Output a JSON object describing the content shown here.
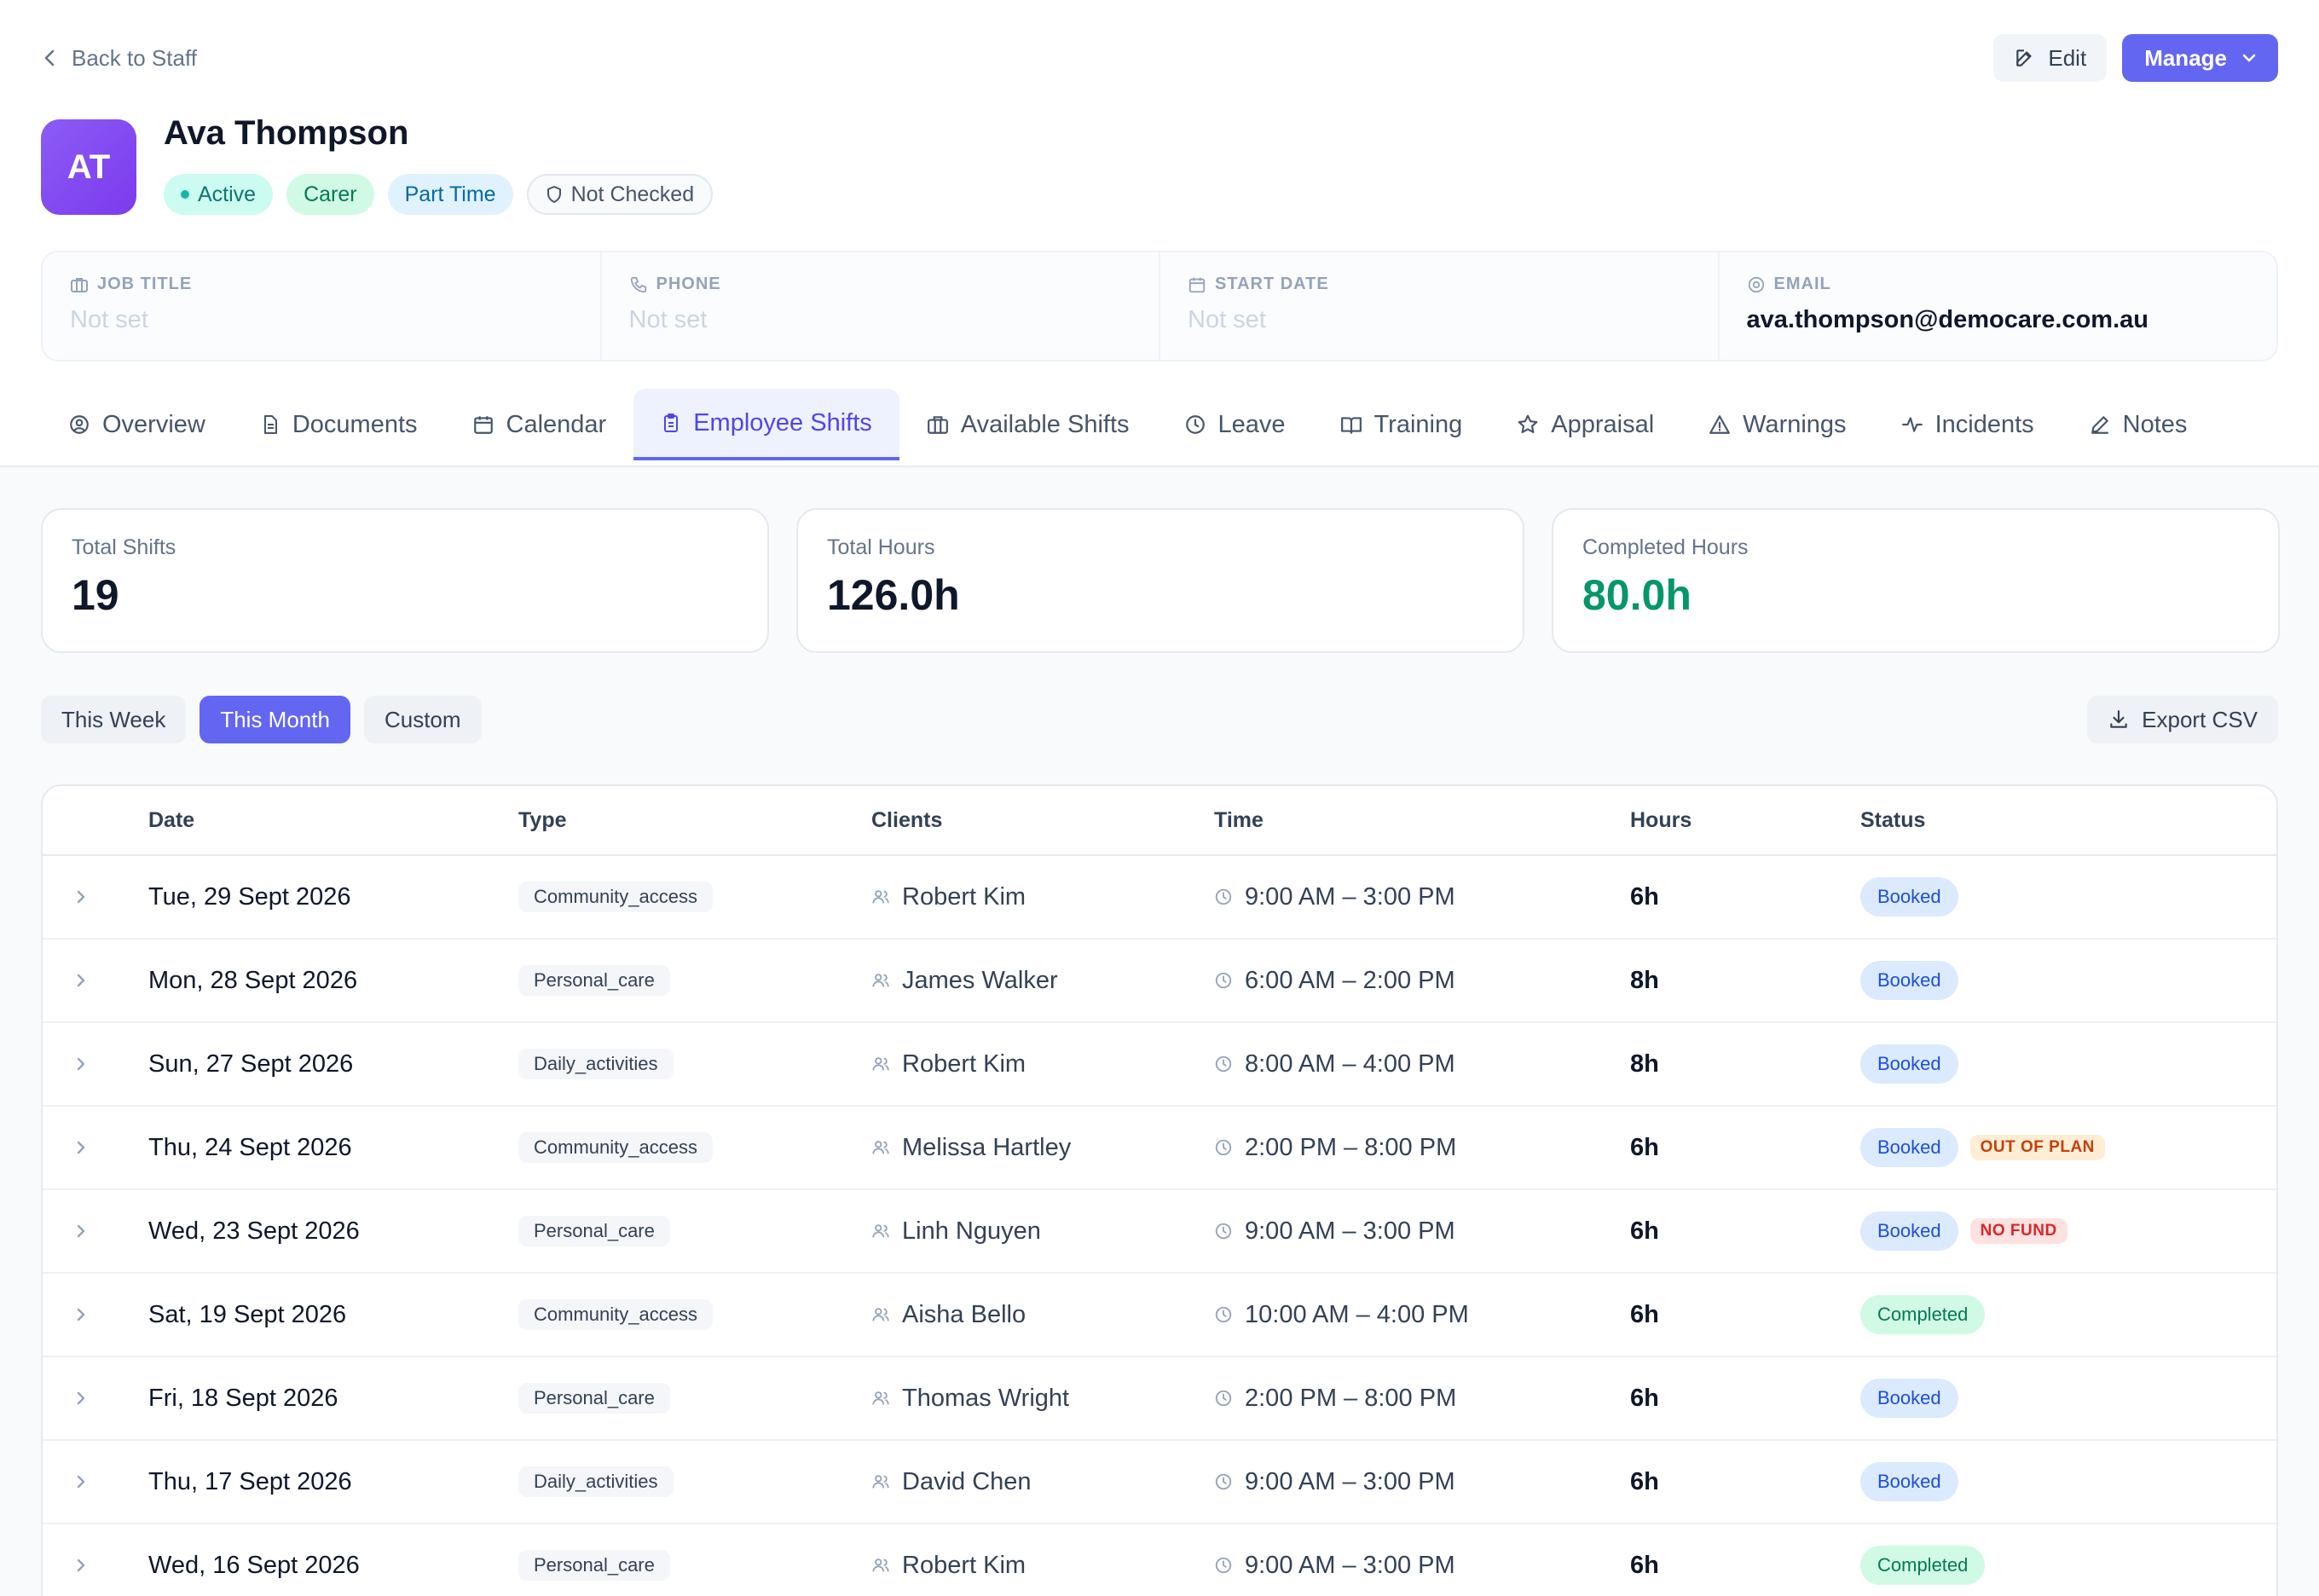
{
  "header": {
    "back_label": "Back to Staff",
    "edit_label": "Edit",
    "manage_label": "Manage"
  },
  "profile": {
    "initials": "AT",
    "name": "Ava Thompson",
    "badges": {
      "active": "Active",
      "role": "Carer",
      "employment": "Part Time",
      "check": "Not Checked"
    }
  },
  "info": {
    "job_title": {
      "label": "JOB TITLE",
      "value": "Not set"
    },
    "phone": {
      "label": "PHONE",
      "value": "Not set"
    },
    "start_date": {
      "label": "START DATE",
      "value": "Not set"
    },
    "email": {
      "label": "EMAIL",
      "value": "ava.thompson@democare.com.au"
    }
  },
  "tabs": [
    {
      "label": "Overview",
      "icon": "user-circle-icon"
    },
    {
      "label": "Documents",
      "icon": "document-icon"
    },
    {
      "label": "Calendar",
      "icon": "calendar-icon"
    },
    {
      "label": "Employee Shifts",
      "icon": "clipboard-icon",
      "active": true
    },
    {
      "label": "Available Shifts",
      "icon": "briefcase-icon"
    },
    {
      "label": "Leave",
      "icon": "clock-icon"
    },
    {
      "label": "Training",
      "icon": "book-icon"
    },
    {
      "label": "Appraisal",
      "icon": "star-icon"
    },
    {
      "label": "Warnings",
      "icon": "warning-icon"
    },
    {
      "label": "Incidents",
      "icon": "activity-icon"
    },
    {
      "label": "Notes",
      "icon": "pencil-icon"
    }
  ],
  "stats": {
    "total_shifts": {
      "label": "Total Shifts",
      "value": "19"
    },
    "total_hours": {
      "label": "Total Hours",
      "value": "126.0h"
    },
    "completed_hours": {
      "label": "Completed Hours",
      "value": "80.0h"
    }
  },
  "filters": {
    "this_week": "This Week",
    "this_month": "This Month",
    "custom": "Custom",
    "active": "This Month",
    "export_label": "Export CSV"
  },
  "table": {
    "columns": {
      "date": "Date",
      "type": "Type",
      "clients": "Clients",
      "time": "Time",
      "hours": "Hours",
      "status": "Status"
    },
    "rows": [
      {
        "date": "Tue, 29 Sept 2026",
        "type": "Community_access",
        "client": "Robert Kim",
        "time": "9:00 AM – 3:00 PM",
        "hours": "6h",
        "status": "Booked",
        "flag": ""
      },
      {
        "date": "Mon, 28 Sept 2026",
        "type": "Personal_care",
        "client": "James Walker",
        "time": "6:00 AM – 2:00 PM",
        "hours": "8h",
        "status": "Booked",
        "flag": ""
      },
      {
        "date": "Sun, 27 Sept 2026",
        "type": "Daily_activities",
        "client": "Robert Kim",
        "time": "8:00 AM – 4:00 PM",
        "hours": "8h",
        "status": "Booked",
        "flag": ""
      },
      {
        "date": "Thu, 24 Sept 2026",
        "type": "Community_access",
        "client": "Melissa Hartley",
        "time": "2:00 PM – 8:00 PM",
        "hours": "6h",
        "status": "Booked",
        "flag": "OUT OF PLAN"
      },
      {
        "date": "Wed, 23 Sept 2026",
        "type": "Personal_care",
        "client": "Linh Nguyen",
        "time": "9:00 AM – 3:00 PM",
        "hours": "6h",
        "status": "Booked",
        "flag": "NO FUND"
      },
      {
        "date": "Sat, 19 Sept 2026",
        "type": "Community_access",
        "client": "Aisha Bello",
        "time": "10:00 AM – 4:00 PM",
        "hours": "6h",
        "status": "Completed",
        "flag": ""
      },
      {
        "date": "Fri, 18 Sept 2026",
        "type": "Personal_care",
        "client": "Thomas Wright",
        "time": "2:00 PM – 8:00 PM",
        "hours": "6h",
        "status": "Booked",
        "flag": ""
      },
      {
        "date": "Thu, 17 Sept 2026",
        "type": "Daily_activities",
        "client": "David Chen",
        "time": "9:00 AM – 3:00 PM",
        "hours": "6h",
        "status": "Booked",
        "flag": ""
      },
      {
        "date": "Wed, 16 Sept 2026",
        "type": "Personal_care",
        "client": "Robert Kim",
        "time": "9:00 AM – 3:00 PM",
        "hours": "6h",
        "status": "Completed",
        "flag": ""
      }
    ]
  },
  "colors": {
    "accent": "#6366f1",
    "completed_green": "#059669",
    "booked_blue": "#1d4ed8"
  }
}
